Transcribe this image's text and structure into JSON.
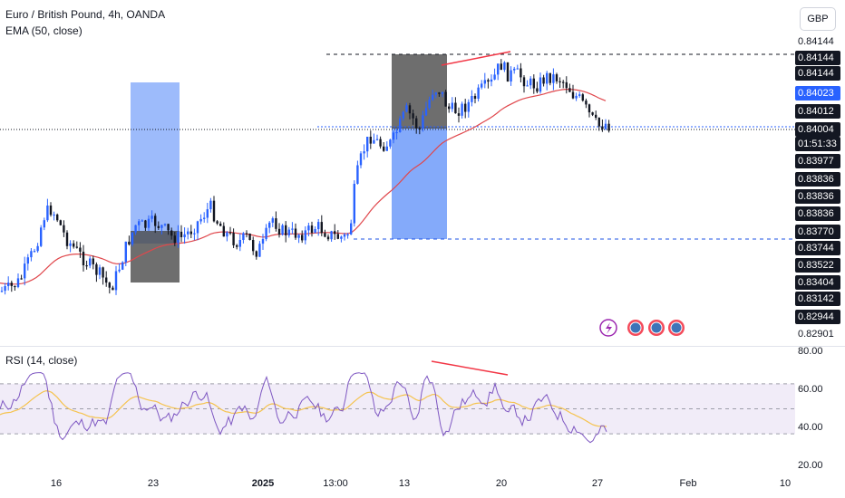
{
  "header": {
    "symbol_line": "Euro / British Pound, 4h, OANDA",
    "ema_line": "EMA (50, close)",
    "currency_button": "GBP"
  },
  "rsi_panel": {
    "label": "RSI (14, close)",
    "levels": [
      80,
      60,
      40,
      20
    ],
    "level_labels": [
      "80.00",
      "60.00",
      "40.00",
      "20.00"
    ]
  },
  "price_scale": {
    "labels": [
      {
        "text": "0.84144",
        "style": "plain"
      },
      {
        "text": "0.84144",
        "style": "dark"
      },
      {
        "text": "0.84144",
        "style": "dark"
      },
      {
        "text": "0.84023",
        "style": "blue"
      },
      {
        "text": "0.84012",
        "style": "dark"
      },
      {
        "text": "0.84004",
        "style": "dark"
      },
      {
        "text": "01:51:33",
        "style": "dark"
      },
      {
        "text": "0.83977",
        "style": "dark"
      },
      {
        "text": "0.83836",
        "style": "dark"
      },
      {
        "text": "0.83836",
        "style": "dark"
      },
      {
        "text": "0.83836",
        "style": "dark"
      },
      {
        "text": "0.83770",
        "style": "dark"
      },
      {
        "text": "0.83744",
        "style": "dark"
      },
      {
        "text": "0.83522",
        "style": "dark"
      },
      {
        "text": "0.83404",
        "style": "dark"
      },
      {
        "text": "0.83142",
        "style": "dark"
      },
      {
        "text": "0.82944",
        "style": "dark"
      },
      {
        "text": "0.82901",
        "style": "plain"
      }
    ]
  },
  "time_axis": {
    "labels": [
      {
        "text": "16",
        "bold": false
      },
      {
        "text": "23",
        "bold": false
      },
      {
        "text": "2025",
        "bold": true
      },
      {
        "text": "13:00",
        "bold": false
      },
      {
        "text": "13",
        "bold": false
      },
      {
        "text": "20",
        "bold": false
      },
      {
        "text": "27",
        "bold": false
      },
      {
        "text": "Feb",
        "bold": false
      },
      {
        "text": "10",
        "bold": false
      }
    ]
  },
  "colors": {
    "up": "#2962ff",
    "down": "#131722",
    "ema": "#e0474c",
    "rsi": "#7e57c2",
    "rsi_ma": "#f5c34f",
    "rsi_band": "#ede7f6",
    "drawing": "#f23645",
    "blue_box": "#5b8ef8",
    "gray_box": "#4a4a4a",
    "price_tag_blue": "#2962ff",
    "price_tag_dark": "#131722"
  },
  "chart_data": {
    "type": "candlestick",
    "symbol": "Euro / British Pound",
    "timeframe": "4h",
    "exchange": "OANDA",
    "approx_price_path": [
      {
        "x": "Dec 10",
        "close": 0.83
      },
      {
        "x": "Dec 13",
        "close": 0.8348
      },
      {
        "x": "Dec 16",
        "close": 0.8318
      },
      {
        "x": "Dec 19",
        "close": 0.8312
      },
      {
        "x": "Dec 23",
        "close": 0.8352
      },
      {
        "x": "Dec 26",
        "close": 0.8355
      },
      {
        "x": "Dec 30",
        "close": 0.8345
      },
      {
        "x": "2025 Jan 2",
        "close": 0.8348
      },
      {
        "x": "Jan 6",
        "close": 0.8355
      },
      {
        "x": "Jan 9",
        "close": 0.8385
      },
      {
        "x": "Jan 13",
        "close": 0.84
      },
      {
        "x": "Jan 16",
        "close": 0.841
      },
      {
        "x": "Jan 20",
        "close": 0.8412
      },
      {
        "x": "Jan 23",
        "close": 0.8408
      },
      {
        "x": "Jan 27",
        "close": 0.84
      }
    ],
    "indicators": [
      "EMA (50, close)",
      "RSI (14, close)"
    ],
    "current_price": 0.84004,
    "countdown": "01:51:33"
  }
}
